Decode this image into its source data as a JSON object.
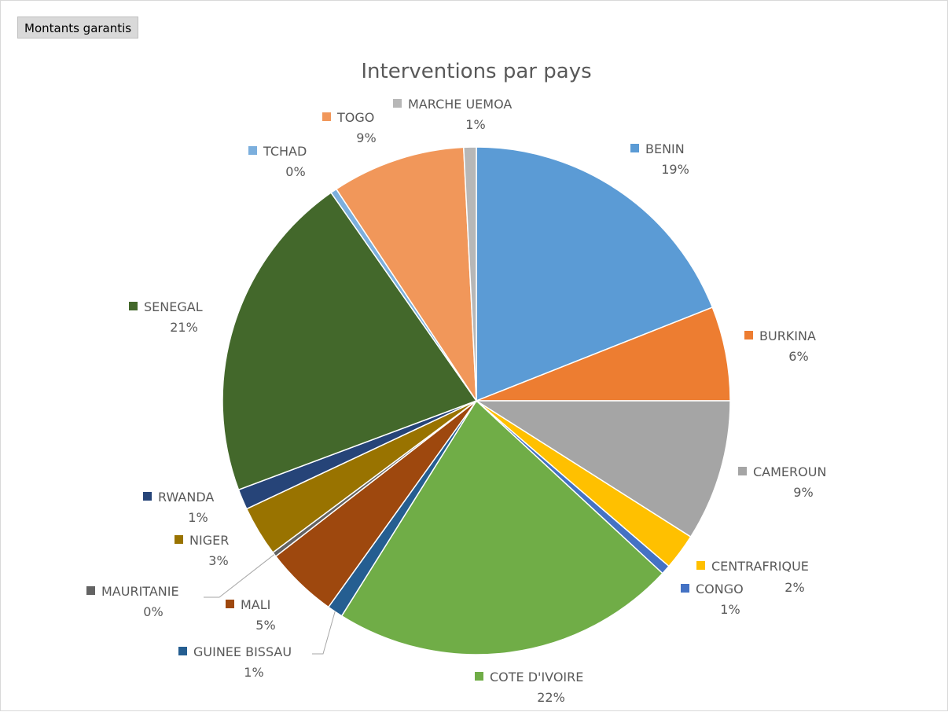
{
  "field_button": {
    "label": "Montants garantis"
  },
  "chart_data": {
    "type": "pie",
    "title": "Interventions par pays",
    "slices": [
      {
        "name": "BENIN",
        "value": 19,
        "label": "19%",
        "color": "#5B9BD5"
      },
      {
        "name": "BURKINA",
        "value": 6,
        "label": "6%",
        "color": "#ED7D31"
      },
      {
        "name": "CAMEROUN",
        "value": 9,
        "label": "9%",
        "color": "#A5A5A5"
      },
      {
        "name": "CENTRAFRIQUE",
        "value": 2.3,
        "label": "2%",
        "color": "#FFC000"
      },
      {
        "name": "CONGO",
        "value": 0.6,
        "label": "1%",
        "color": "#4472C4"
      },
      {
        "name": "COTE D'IVOIRE",
        "value": 22,
        "label": "22%",
        "color": "#70AD47"
      },
      {
        "name": "GUINEE BISSAU",
        "value": 1,
        "label": "1%",
        "color": "#255E91"
      },
      {
        "name": "MALI",
        "value": 4.6,
        "label": "5%",
        "color": "#9E480E"
      },
      {
        "name": "MAURITANIE",
        "value": 0.3,
        "label": "0%",
        "color": "#636363"
      },
      {
        "name": "NIGER",
        "value": 3.2,
        "label": "3%",
        "color": "#997300"
      },
      {
        "name": "RWANDA",
        "value": 1.3,
        "label": "1%",
        "color": "#264478"
      },
      {
        "name": "SENEGAL",
        "value": 21,
        "label": "21%",
        "color": "#43682B"
      },
      {
        "name": "TCHAD",
        "value": 0.4,
        "label": "0%",
        "color": "#7CAFDD"
      },
      {
        "name": "TOGO",
        "value": 8.5,
        "label": "9%",
        "color": "#F1975A"
      },
      {
        "name": "MARCHE UEMOA",
        "value": 0.8,
        "label": "1%",
        "color": "#B7B7B7"
      }
    ]
  }
}
